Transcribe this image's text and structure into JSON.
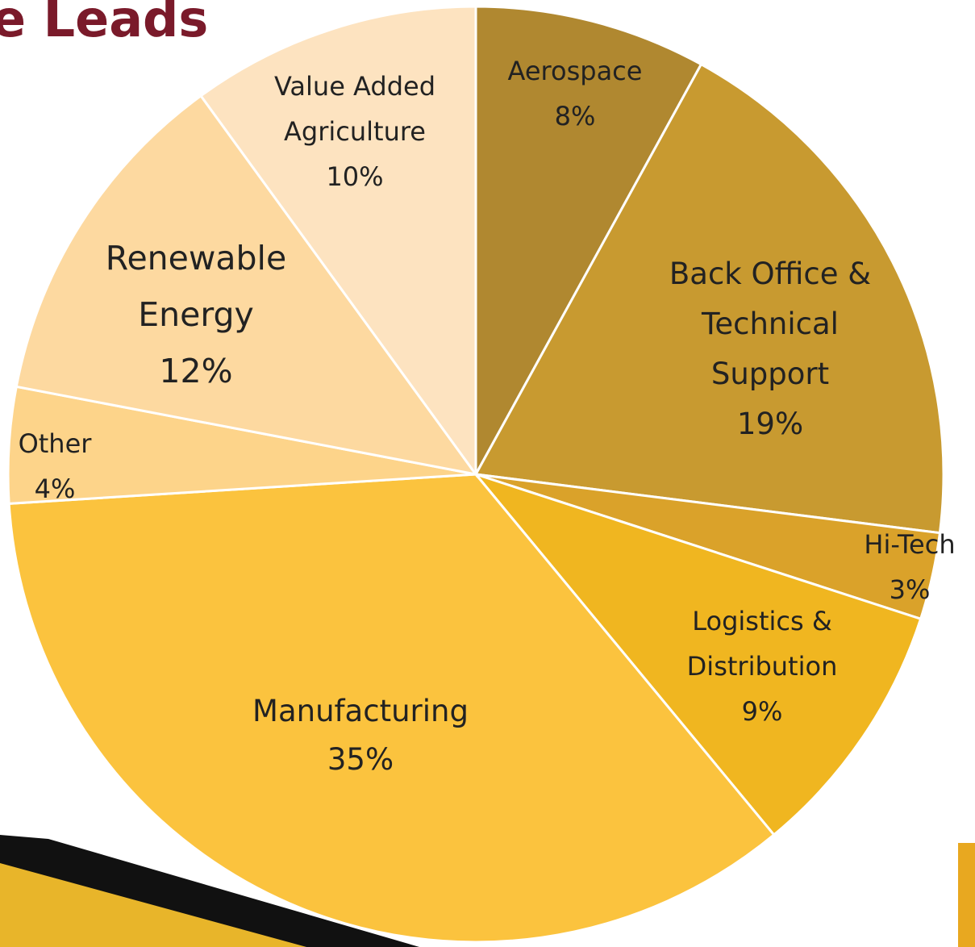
{
  "chart_data": {
    "type": "pie",
    "title": "e Leads",
    "categories": [
      "Aerospace",
      "Back Office & Technical Support",
      "Hi-Tech",
      "Logistics & Distribution",
      "Manufacturing",
      "Other",
      "Renewable Energy",
      "Value Added Agriculture"
    ],
    "values": [
      8,
      19,
      3,
      9,
      35,
      4,
      12,
      10
    ],
    "value_labels": [
      "8%",
      "19%",
      "3%",
      "9%",
      "35%",
      "4%",
      "12%",
      "10%"
    ],
    "colors": [
      "#b08830",
      "#c89a30",
      "#daa22a",
      "#f0b620",
      "#fbc33e",
      "#fdd48a",
      "#fdd9a0",
      "#fde3c0"
    ]
  }
}
